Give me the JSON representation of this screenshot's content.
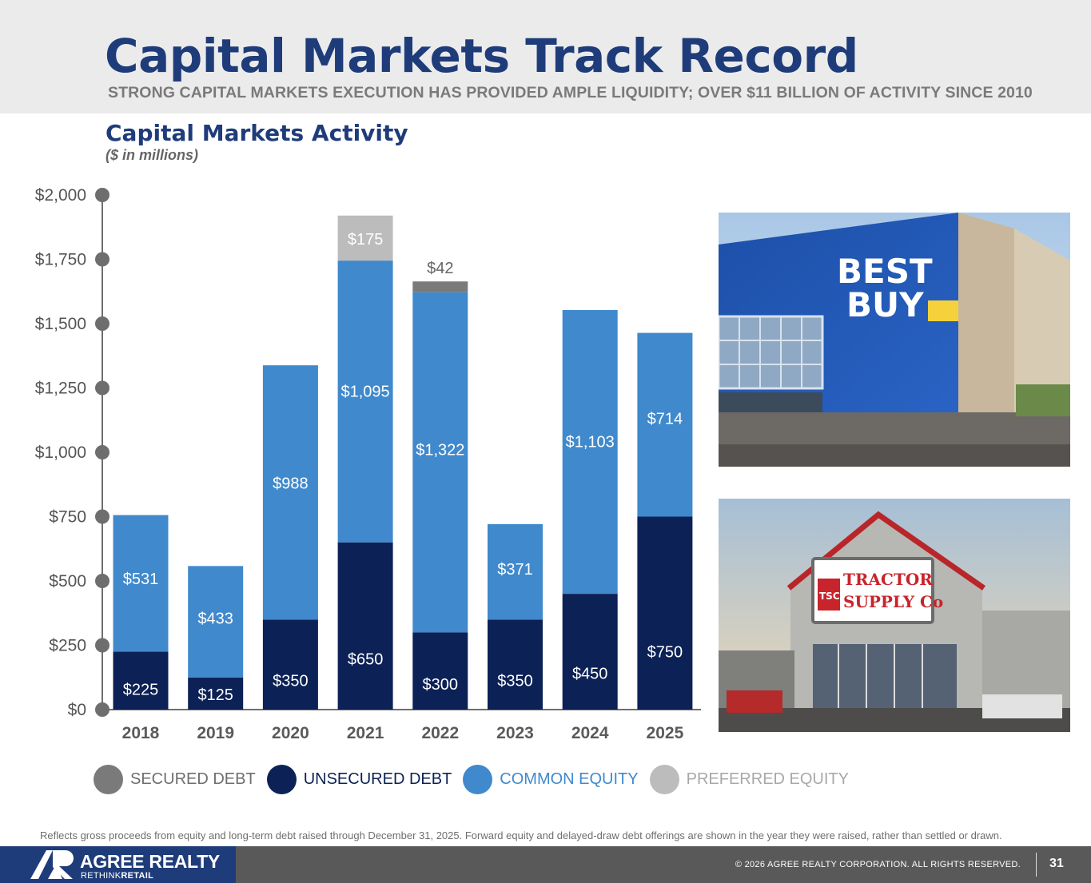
{
  "header": {
    "title": "Capital Markets Track Record",
    "subtitle": "STRONG CAPITAL MARKETS EXECUTION HAS PROVIDED AMPLE LIQUIDITY; OVER $11 BILLION OF ACTIVITY SINCE 2010"
  },
  "chart_data": {
    "type": "bar",
    "stacked": true,
    "title": "Capital Markets Activity",
    "subtitle": "($ in millions)",
    "categories": [
      "2018",
      "2019",
      "2020",
      "2021",
      "2022",
      "2023",
      "2024",
      "2025"
    ],
    "ylim": [
      0,
      2000
    ],
    "yticks": [
      0,
      250,
      500,
      750,
      1000,
      1250,
      1500,
      1750,
      2000
    ],
    "ytick_labels": [
      "$0",
      "$250",
      "$500",
      "$750",
      "$1,000",
      "$1,250",
      "$1,500",
      "$1,750",
      "$2,000"
    ],
    "grid": false,
    "legend_position": "bottom",
    "series": [
      {
        "name": "SECURED DEBT",
        "color": "#7a7a7a",
        "values": [
          0,
          0,
          0,
          0,
          42,
          0,
          0,
          0
        ],
        "labels": [
          "",
          "",
          "",
          "",
          "$42",
          "",
          "",
          ""
        ],
        "label_outside": true
      },
      {
        "name": "UNSECURED DEBT",
        "color": "#0c2155",
        "values": [
          225,
          125,
          350,
          650,
          300,
          350,
          450,
          750
        ],
        "labels": [
          "$225",
          "$125",
          "$350",
          "$650",
          "$300",
          "$350",
          "$450",
          "$750"
        ]
      },
      {
        "name": "COMMON EQUITY",
        "color": "#4089cc",
        "values": [
          531,
          433,
          988,
          1095,
          1322,
          371,
          1103,
          714
        ],
        "labels": [
          "$531",
          "$433",
          "$988",
          "$1,095",
          "$1,322",
          "$371",
          "$1,103",
          "$714"
        ]
      },
      {
        "name": "PREFERRED EQUITY",
        "color": "#bcbcbc",
        "values": [
          0,
          0,
          0,
          175,
          0,
          0,
          0,
          0
        ],
        "labels": [
          "",
          "",
          "",
          "$175",
          "",
          "",
          "",
          ""
        ]
      }
    ]
  },
  "photos": {
    "bestbuy_sign": [
      "BEST",
      "BUY"
    ],
    "tractor_sign_badge": "TSC",
    "tractor_sign": [
      "TRACTOR",
      "SUPPLY Co"
    ]
  },
  "footnote": "Reflects gross proceeds from equity and long-term debt raised through December 31, 2025. Forward equity and delayed-draw debt offerings are shown in the year they were raised, rather than settled or drawn.",
  "footer": {
    "logo_name": "AGREE REALTY",
    "logo_tag_light": "RETHINK",
    "logo_tag_bold": "RETAIL",
    "copyright": "© 2026 AGREE REALTY CORPORATION. ALL RIGHTS RESERVED.",
    "page_number": "31"
  }
}
